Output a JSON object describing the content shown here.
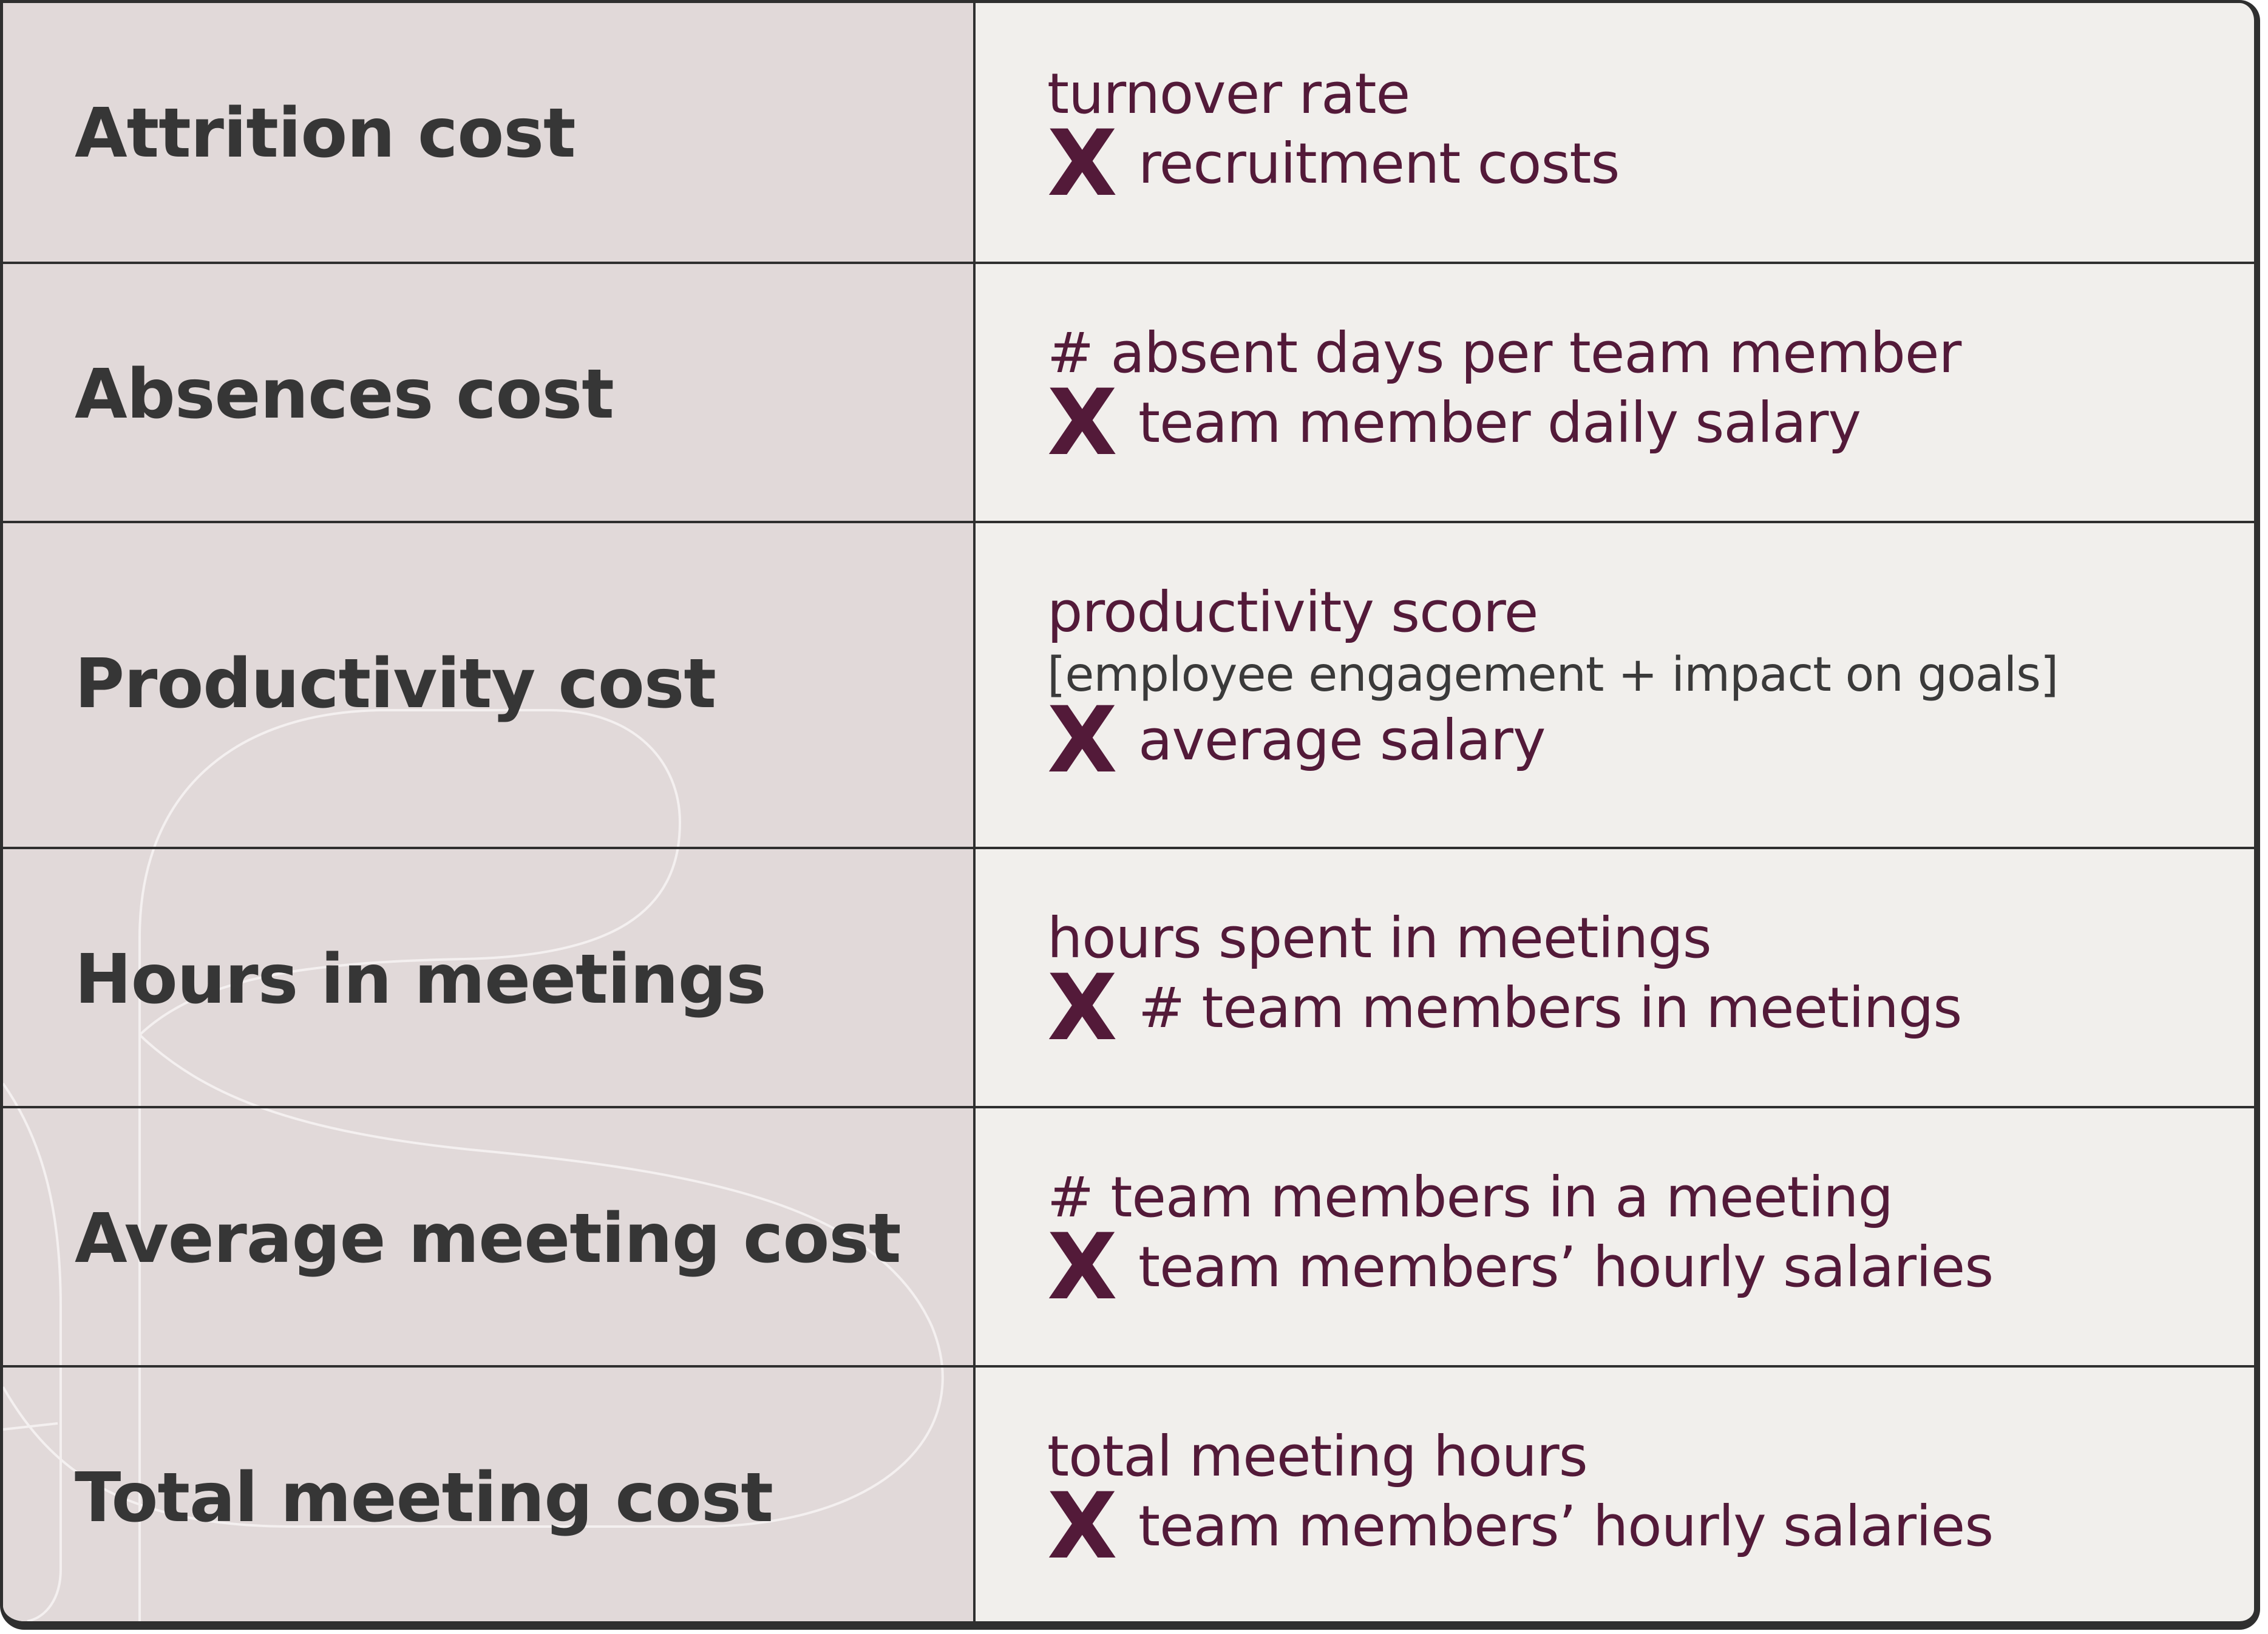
{
  "rows": [
    {
      "label": "Attrition cost",
      "first": "turnover rate",
      "note": "",
      "op": "X",
      "second": "recruitment costs"
    },
    {
      "label": "Absences cost",
      "first": "# absent days per team member",
      "note": "",
      "op": "X",
      "second": "team member daily salary"
    },
    {
      "label": "Productivity cost",
      "first": "productivity score",
      "note": "[employee engagement + impact on goals]",
      "op": "X",
      "second": "average salary"
    },
    {
      "label": "Hours in meetings",
      "first": "hours spent in meetings",
      "note": "",
      "op": "X",
      "second": "# team members in meetings"
    },
    {
      "label": "Average meeting cost",
      "first": "# team members in a meeting",
      "note": "",
      "op": "X",
      "second": "team members’ hourly salaries"
    },
    {
      "label": "Total meeting cost",
      "first": "total meeting hours",
      "note": "",
      "op": "X",
      "second": "team members’ hourly salaries"
    }
  ],
  "colors": {
    "left_column": "#e1d9d9",
    "right_column": "#f1efec",
    "accent": "#531a39",
    "label_text": "#363636",
    "grid": "#2f2f2f"
  }
}
